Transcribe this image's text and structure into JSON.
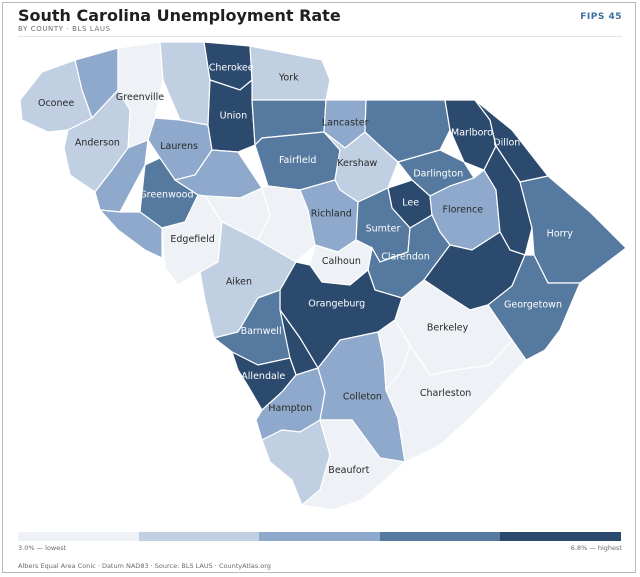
{
  "title": "South Carolina Unemployment Rate",
  "subtitle": "BY COUNTY · BLS LAUS",
  "badge": "FIPS 45",
  "legend": {
    "low_label": "3.0% — lowest",
    "high_label": "6.8% — highest",
    "colors": [
      "#eef1f6",
      "#c0cfe2",
      "#8ea9cb",
      "#55799f",
      "#2b4a6e"
    ]
  },
  "footer": "Albers Equal Area Conic · Datum NAD83 · Source: BLS LAUS · CountyAtlas.org",
  "counties": [
    {
      "id": "oconee",
      "name": "Oconee",
      "cls": 1
    },
    {
      "id": "pickens",
      "name": "",
      "cls": 2
    },
    {
      "id": "greenville",
      "name": "Greenville",
      "cls": 0
    },
    {
      "id": "spartanburg",
      "name": "",
      "cls": 1
    },
    {
      "id": "cherokee",
      "name": "Cherokee",
      "cls": 4
    },
    {
      "id": "york",
      "name": "York",
      "cls": 1
    },
    {
      "id": "anderson",
      "name": "Anderson",
      "cls": 1
    },
    {
      "id": "laurens",
      "name": "Laurens",
      "cls": 2
    },
    {
      "id": "union",
      "name": "Union",
      "cls": 4
    },
    {
      "id": "chester",
      "name": "",
      "cls": 3
    },
    {
      "id": "lancaster",
      "name": "Lancaster",
      "cls": 2
    },
    {
      "id": "chesterfield",
      "name": "",
      "cls": 3
    },
    {
      "id": "marlboro",
      "name": "Marlboro",
      "cls": 4
    },
    {
      "id": "dillon",
      "name": "Dillon",
      "cls": 4
    },
    {
      "id": "abbeville",
      "name": "",
      "cls": 2
    },
    {
      "id": "greenwood",
      "name": "Greenwood",
      "cls": 3
    },
    {
      "id": "newberry",
      "name": "",
      "cls": 2
    },
    {
      "id": "fairfield",
      "name": "Fairfield",
      "cls": 3
    },
    {
      "id": "kershaw",
      "name": "Kershaw",
      "cls": 1
    },
    {
      "id": "darlington",
      "name": "Darlington",
      "cls": 3
    },
    {
      "id": "lee",
      "name": "Lee",
      "cls": 4
    },
    {
      "id": "florence",
      "name": "Florence",
      "cls": 2
    },
    {
      "id": "marion",
      "name": "",
      "cls": 4
    },
    {
      "id": "horry",
      "name": "Horry",
      "cls": 3
    },
    {
      "id": "mccormick",
      "name": "",
      "cls": 2
    },
    {
      "id": "edgefield",
      "name": "Edgefield",
      "cls": 0
    },
    {
      "id": "saluda",
      "name": "",
      "cls": 0
    },
    {
      "id": "lexington",
      "name": "",
      "cls": 0
    },
    {
      "id": "richland",
      "name": "Richland",
      "cls": 2
    },
    {
      "id": "sumter",
      "name": "Sumter",
      "cls": 3
    },
    {
      "id": "clarendon",
      "name": "Clarendon",
      "cls": 3
    },
    {
      "id": "williamsburg",
      "name": "",
      "cls": 4
    },
    {
      "id": "georgetown",
      "name": "Georgetown",
      "cls": 3
    },
    {
      "id": "aiken",
      "name": "Aiken",
      "cls": 1
    },
    {
      "id": "calhoun",
      "name": "Calhoun",
      "cls": 0
    },
    {
      "id": "orangeburg",
      "name": "Orangeburg",
      "cls": 4
    },
    {
      "id": "barnwell",
      "name": "Barnwell",
      "cls": 3
    },
    {
      "id": "bamberg",
      "name": "",
      "cls": 4
    },
    {
      "id": "allendale",
      "name": "Allendale",
      "cls": 4
    },
    {
      "id": "hampton",
      "name": "Hampton",
      "cls": 2
    },
    {
      "id": "colleton",
      "name": "Colleton",
      "cls": 2
    },
    {
      "id": "dorchester",
      "name": "",
      "cls": 0
    },
    {
      "id": "berkeley",
      "name": "Berkeley",
      "cls": 0
    },
    {
      "id": "charleston",
      "name": "Charleston",
      "cls": 0
    },
    {
      "id": "jasper",
      "name": "",
      "cls": 1
    },
    {
      "id": "beaufort",
      "name": "Beaufort",
      "cls": 0
    }
  ]
}
